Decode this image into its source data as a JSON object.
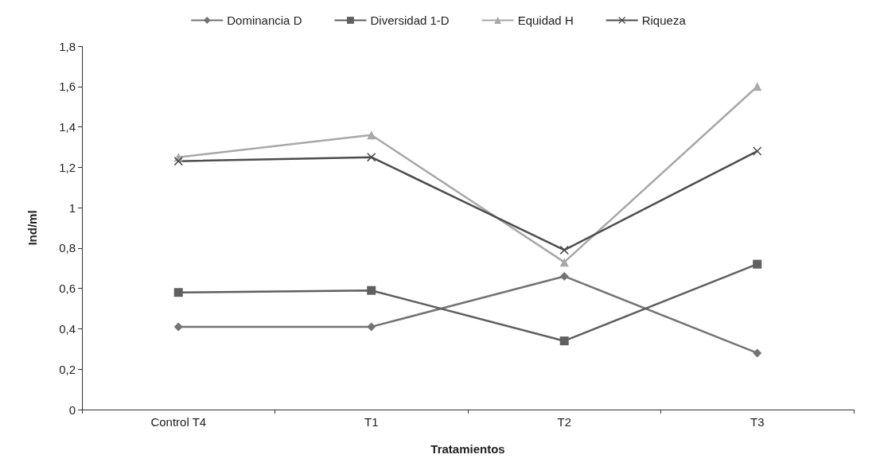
{
  "chart_data": {
    "type": "line",
    "xlabel": "Tratamientos",
    "ylabel": "Ind/ml",
    "categories": [
      "Control T4",
      "T1",
      "T2",
      "T3"
    ],
    "series": [
      {
        "name": "Dominancia D",
        "color": "#737373",
        "marker": "diamond",
        "values": [
          0.41,
          0.41,
          0.66,
          0.28
        ]
      },
      {
        "name": "Diversidad 1-D",
        "color": "#5f5f5f",
        "marker": "square",
        "values": [
          0.58,
          0.59,
          0.34,
          0.72
        ]
      },
      {
        "name": "Equidad H",
        "color": "#a8a8a8",
        "marker": "triangle",
        "values": [
          1.25,
          1.36,
          0.73,
          1.6
        ]
      },
      {
        "name": "Riqueza",
        "color": "#4d4d4d",
        "marker": "cross",
        "values": [
          1.23,
          1.25,
          0.79,
          1.28
        ]
      }
    ],
    "ylim": [
      0,
      1.8
    ],
    "yticks": [
      0,
      {
        "value": 0.2,
        "label": "0,2"
      },
      {
        "value": 0.4,
        "label": "0,4"
      },
      {
        "value": 0.6,
        "label": "0,6"
      },
      {
        "value": 0.8,
        "label": "0,8"
      },
      1,
      {
        "value": 1.2,
        "label": "1,2"
      },
      {
        "value": 1.4,
        "label": "1,4"
      },
      {
        "value": 1.6,
        "label": "1,6"
      },
      {
        "value": 1.8,
        "label": "1,8"
      }
    ],
    "grid": false,
    "legend": "top",
    "line_style": "solid"
  }
}
